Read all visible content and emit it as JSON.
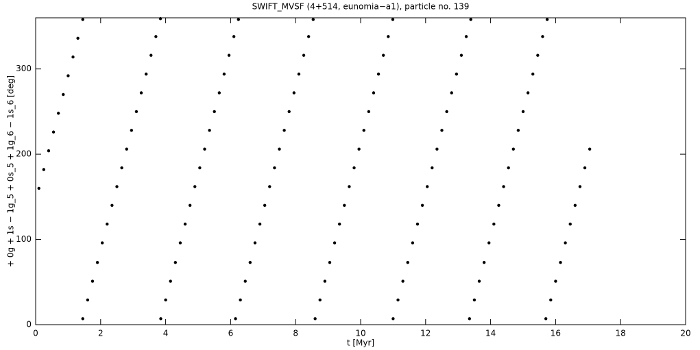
{
  "chart_data": {
    "type": "scatter",
    "title": "SWIFT_MVSF (4+514, eunomia−a1), particle no. 139",
    "x_label": "t [Myr]",
    "y_label": "+ 0g + 1s − 1g_5 + 0s_5 + 1g_6 − 1s_6 [deg]",
    "color": "#000000",
    "xlim": [
      0,
      20
    ],
    "xticks": [
      0,
      2,
      4,
      6,
      8,
      10,
      12,
      14,
      16,
      18,
      20
    ],
    "ylim": [
      0,
      360
    ],
    "yticks": [
      0,
      100,
      200,
      300
    ],
    "x": [
      0.1,
      0.25,
      0.4,
      0.55,
      0.7,
      0.85,
      1.0,
      1.15,
      1.3,
      1.45,
      1.45,
      1.6,
      1.75,
      1.9,
      2.05,
      2.2,
      2.35,
      2.5,
      2.65,
      2.8,
      2.95,
      3.1,
      3.25,
      3.4,
      3.55,
      3.7,
      3.84,
      3.85,
      4.0,
      4.15,
      4.3,
      4.45,
      4.6,
      4.75,
      4.9,
      5.05,
      5.2,
      5.35,
      5.5,
      5.65,
      5.8,
      5.95,
      6.1,
      6.24,
      6.15,
      6.3,
      6.45,
      6.6,
      6.75,
      6.9,
      7.05,
      7.2,
      7.35,
      7.5,
      7.65,
      7.8,
      7.95,
      8.1,
      8.25,
      8.4,
      8.54,
      8.6,
      8.75,
      8.9,
      9.05,
      9.2,
      9.35,
      9.5,
      9.65,
      9.8,
      9.95,
      10.1,
      10.25,
      10.4,
      10.55,
      10.7,
      10.85,
      10.99,
      11.0,
      11.15,
      11.3,
      11.45,
      11.6,
      11.75,
      11.9,
      12.05,
      12.2,
      12.35,
      12.5,
      12.65,
      12.8,
      12.95,
      13.1,
      13.25,
      13.39,
      13.35,
      13.5,
      13.65,
      13.8,
      13.95,
      14.1,
      14.25,
      14.4,
      14.55,
      14.7,
      14.85,
      15.0,
      15.15,
      15.3,
      15.45,
      15.6,
      15.74,
      15.7,
      15.85,
      16.0,
      16.15,
      16.3,
      16.45,
      16.6,
      16.75,
      16.9,
      17.05
    ],
    "values": [
      160,
      182,
      204,
      226,
      248,
      270,
      292,
      314,
      336,
      358,
      7,
      29,
      51,
      73,
      96,
      118,
      140,
      162,
      184,
      206,
      228,
      250,
      272,
      294,
      316,
      338,
      359,
      7,
      29,
      51,
      73,
      96,
      118,
      140,
      162,
      184,
      206,
      228,
      250,
      272,
      294,
      316,
      338,
      358,
      7,
      29,
      51,
      73,
      96,
      118,
      140,
      162,
      184,
      206,
      228,
      250,
      272,
      294,
      316,
      338,
      358,
      7,
      29,
      51,
      73,
      96,
      118,
      140,
      162,
      184,
      206,
      228,
      250,
      272,
      294,
      316,
      338,
      358,
      7,
      29,
      51,
      73,
      96,
      118,
      140,
      162,
      184,
      206,
      228,
      250,
      272,
      294,
      316,
      338,
      358,
      7,
      29,
      51,
      73,
      96,
      118,
      140,
      162,
      184,
      206,
      228,
      250,
      272,
      294,
      316,
      338,
      358,
      7,
      29,
      51,
      73,
      96,
      118,
      140,
      162,
      184,
      206
    ]
  }
}
